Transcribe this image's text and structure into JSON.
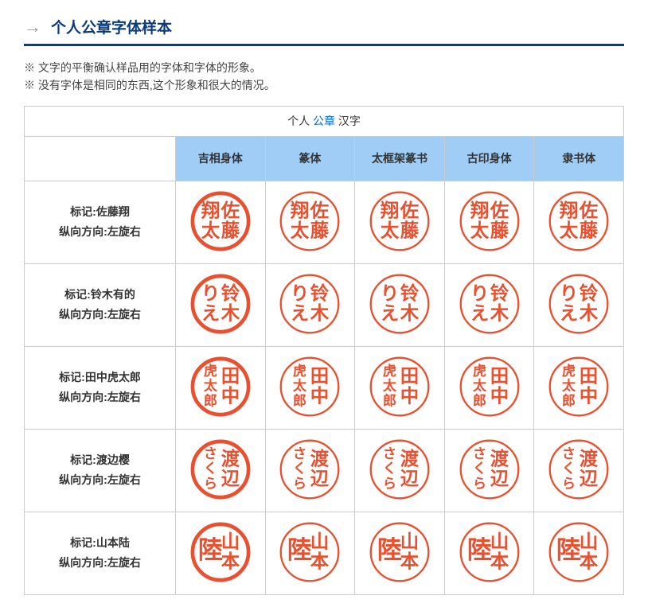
{
  "header": {
    "arrow_glyph": "→",
    "title": "个人公章字体样本"
  },
  "notes": [
    "※ 文字的平衡确认样品用的字体和字体的形象。",
    "※ 没有字体是相同的东西,这个形象和很大的情况。"
  ],
  "table": {
    "caption_pre": "个人 ",
    "caption_link": "公章",
    "caption_post": " 汉字",
    "columns": [
      "吉相身体",
      "篆体",
      "太框架篆书",
      "古印身体",
      "隶书体"
    ],
    "stamp_color": "#e8502f",
    "stamp_bg": "#ffffff",
    "ring_styles": {
      "thick": 6,
      "thin": 3
    },
    "rows": [
      {
        "label_line1": "标记:佐藤翔",
        "label_line2": "纵向方向:左旋右",
        "chars_right": "佐藤",
        "chars_left": "翔太",
        "rings": [
          "thick",
          "thin",
          "thin",
          "thin",
          "thin"
        ]
      },
      {
        "label_line1": "标记:铃木有的",
        "label_line2": "纵向方向:左旋右",
        "chars_right": "铃木",
        "chars_left": "りえ",
        "rings": [
          "thick",
          "thin",
          "thin",
          "thin",
          "thin"
        ]
      },
      {
        "label_line1": "标记:田中虎太郎",
        "label_line2": "纵向方向:左旋右",
        "chars_right": "田中",
        "chars_left": "虎太郎",
        "rings": [
          "thick",
          "thin",
          "thin",
          "thin",
          "thin"
        ]
      },
      {
        "label_line1": "标记:渡边樱",
        "label_line2": "纵向方向:左旋右",
        "chars_right": "渡辺",
        "chars_left": "さくら",
        "rings": [
          "thick",
          "thin",
          "thin",
          "thin",
          "thin"
        ]
      },
      {
        "label_line1": "标记:山本陆",
        "label_line2": "纵向方向:左旋右",
        "chars_right": "山本",
        "chars_left": "陸",
        "rings": [
          "thick",
          "thin",
          "thin",
          "thin",
          "thin"
        ]
      }
    ]
  }
}
